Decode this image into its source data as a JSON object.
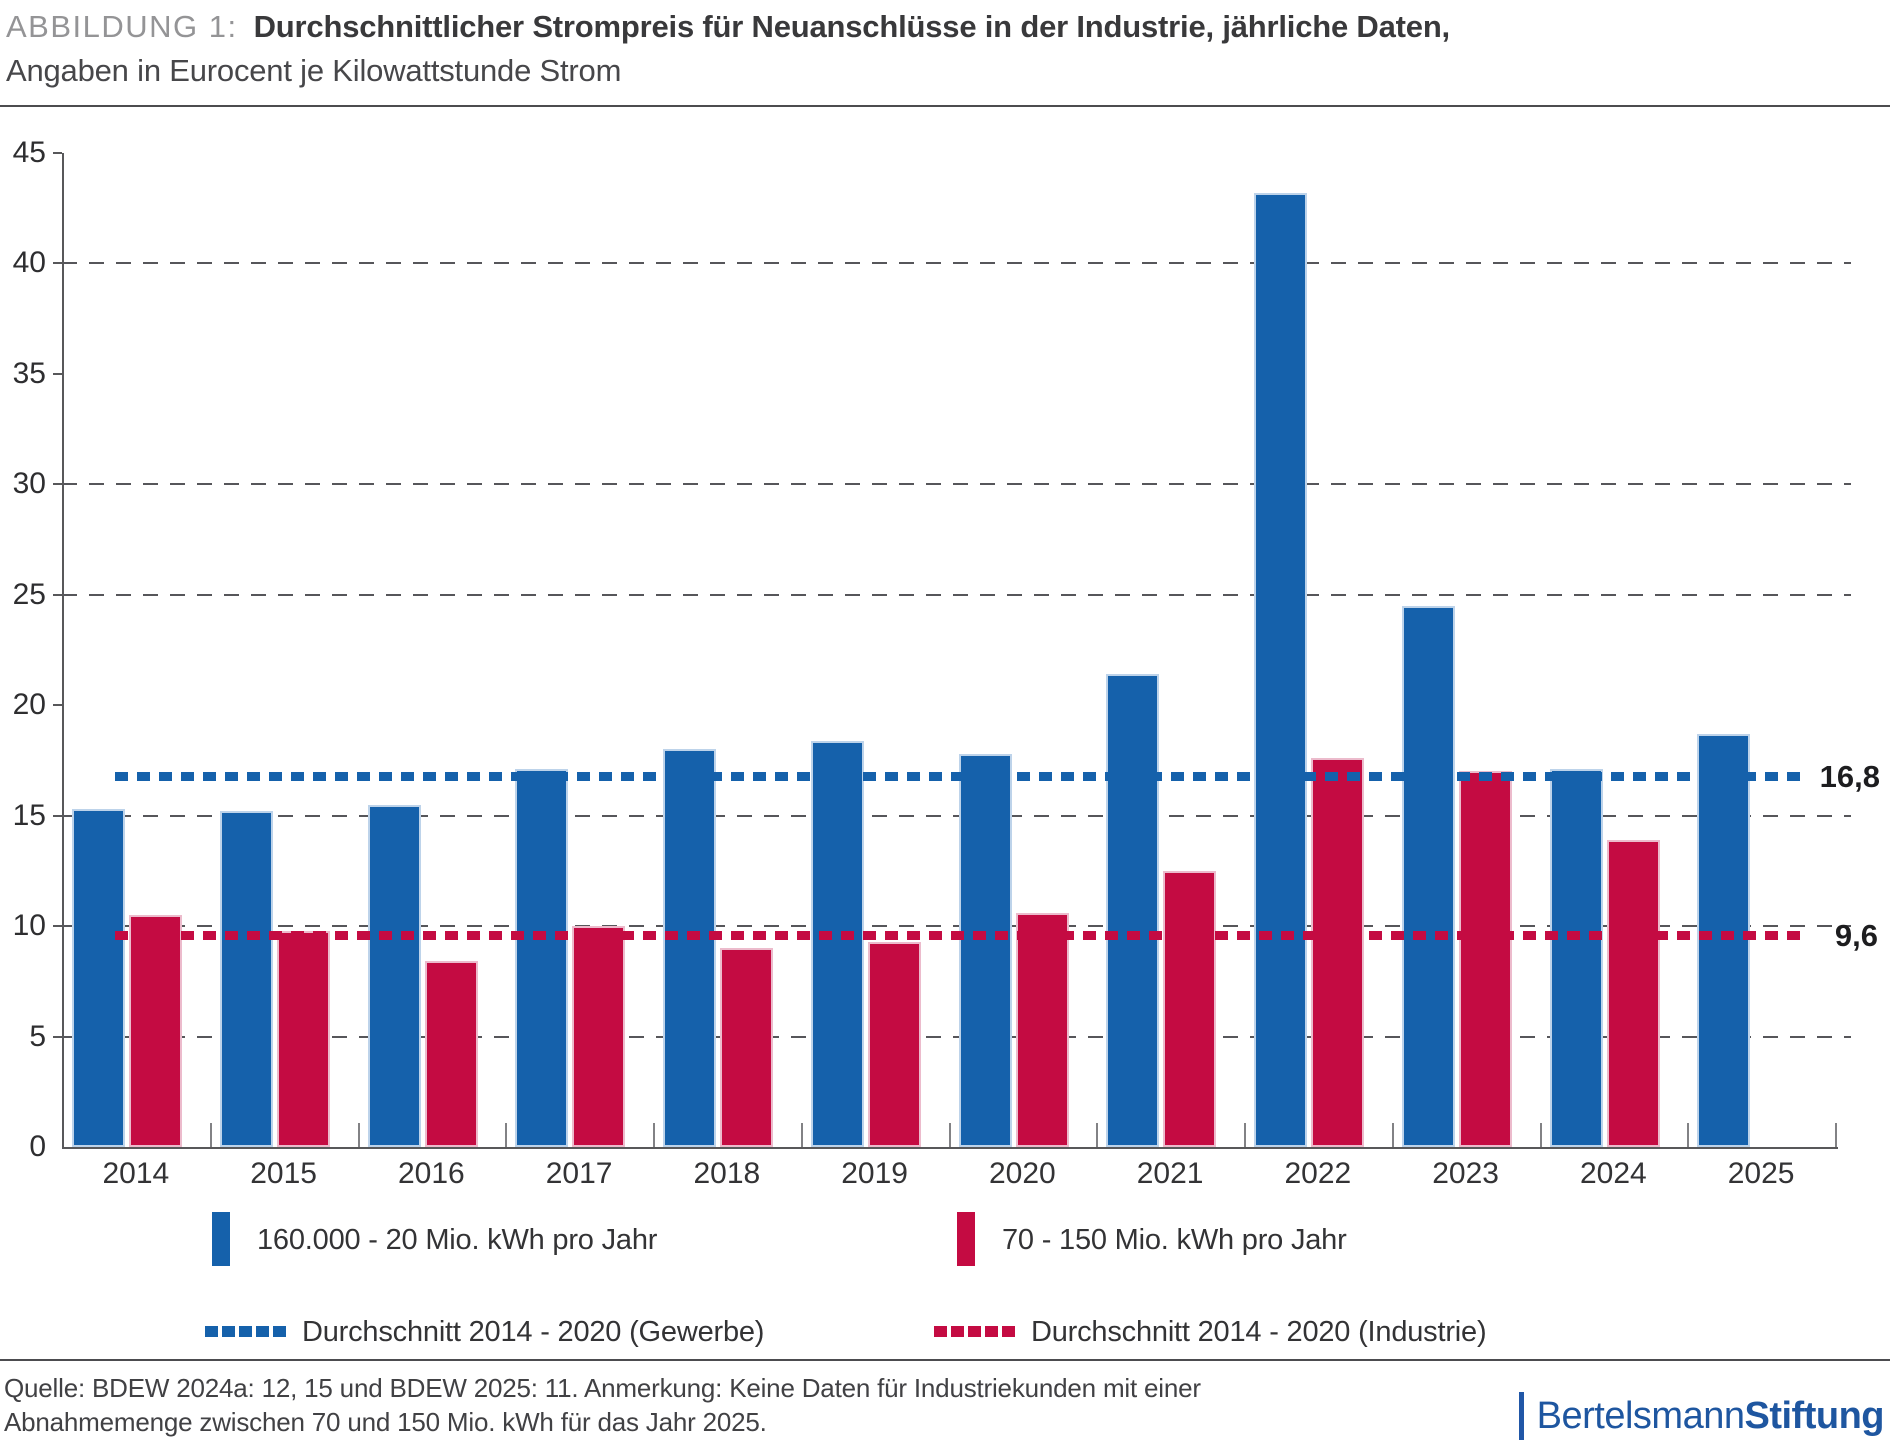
{
  "header": {
    "figure_label": "ABBILDUNG 1:",
    "title": "Durchschnittlicher Strompreis für Neuanschlüsse in der Industrie, jährliche Daten,",
    "subtitle": "Angaben in Eurocent je Kilowattstunde Strom"
  },
  "chart_data": {
    "type": "bar",
    "title": "Durchschnittlicher Strompreis für Neuanschlüsse in der Industrie, jährliche Daten, Angaben in Eurocent je Kilowattstunde Strom",
    "unit": "Eurocent je Kilowattstunde",
    "categories": [
      "2014",
      "2015",
      "2016",
      "2017",
      "2018",
      "2019",
      "2020",
      "2021",
      "2022",
      "2023",
      "2024",
      "2025"
    ],
    "series": [
      {
        "name": "160.000 - 20 Mio. kWh pro Jahr",
        "color": "#1561AB",
        "values": [
          15.3,
          15.2,
          15.5,
          17.1,
          18.0,
          18.4,
          17.8,
          21.4,
          43.2,
          24.5,
          17.1,
          18.7
        ]
      },
      {
        "name": "70 - 150 Mio. kWh pro Jahr",
        "color": "#C40B42",
        "values": [
          10.5,
          9.8,
          8.4,
          10.0,
          9.0,
          9.3,
          10.6,
          12.5,
          17.6,
          17.0,
          13.9,
          null
        ]
      }
    ],
    "average_lines": [
      {
        "name": "Durchschnitt 2014 - 2020 (Gewerbe)",
        "value": 16.8,
        "value_label": "16,8",
        "color": "#1561AB"
      },
      {
        "name": "Durchschnitt 2014 - 2020 (Industrie)",
        "value": 9.6,
        "value_label": "9,6",
        "color": "#C40B42"
      }
    ],
    "ylim": [
      0,
      45
    ],
    "yticks": [
      0,
      5,
      10,
      15,
      20,
      25,
      30,
      35,
      40,
      45
    ],
    "gridlines_at": [
      5,
      10,
      15,
      25,
      30,
      40
    ],
    "grid": "dashed-horizontal",
    "legend_position": "bottom",
    "xlabel": "",
    "ylabel": ""
  },
  "footer": {
    "source_line1": "Quelle: BDEW 2024a: 12, 15 und BDEW 2025: 11. Anmerkung: Keine Daten für Industriekunden mit einer",
    "source_line2": "Abnahmemenge zwischen 70 und 150 Mio. kWh für das Jahr 2025.",
    "logo": {
      "regular": "Bertelsmann",
      "bold": "Stiftung",
      "color": "#1E56A0"
    }
  }
}
